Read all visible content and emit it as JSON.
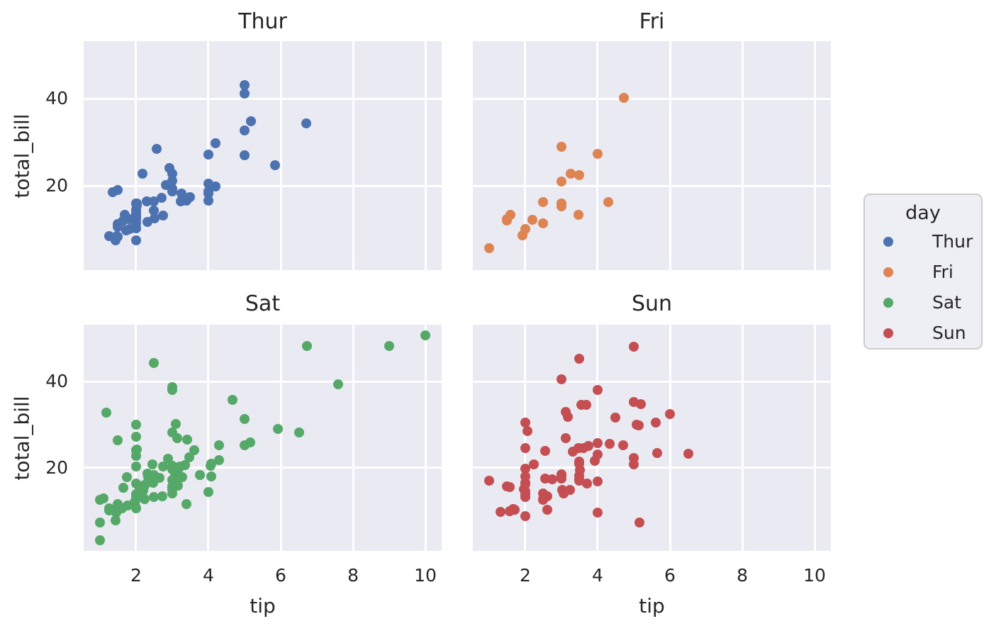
{
  "chart_data": {
    "type": "scatter",
    "facet_by": "day",
    "xlabel": "tip",
    "ylabel": "total_bill",
    "xlim": [
      0.55,
      10.45
    ],
    "ylim": [
      0.68,
      53.2
    ],
    "xticks": [
      2,
      4,
      6,
      8,
      10
    ],
    "yticks": [
      20,
      40
    ],
    "grid": true,
    "panel_background": "#EAEAF2",
    "grid_color": "#FFFFFF",
    "legend": {
      "title": "day",
      "position": "right",
      "entries": [
        {
          "label": "Thur",
          "color": "#4C72B0"
        },
        {
          "label": "Fri",
          "color": "#DD8452"
        },
        {
          "label": "Sat",
          "color": "#55A868"
        },
        {
          "label": "Sun",
          "color": "#C44E52"
        }
      ]
    },
    "facets": [
      {
        "title": "Thur",
        "color": "#4C72B0",
        "points": [
          [
            4.0,
            27.2
          ],
          [
            3.0,
            22.76
          ],
          [
            2.71,
            17.29
          ],
          [
            3.0,
            19.44
          ],
          [
            3.4,
            16.66
          ],
          [
            1.83,
            10.07
          ],
          [
            5.0,
            32.68
          ],
          [
            2.03,
            15.98
          ],
          [
            5.17,
            34.83
          ],
          [
            2.0,
            13.03
          ],
          [
            4.0,
            18.28
          ],
          [
            5.85,
            24.71
          ],
          [
            3.0,
            21.16
          ],
          [
            1.5,
            10.65
          ],
          [
            1.8,
            12.43
          ],
          [
            2.92,
            24.08
          ],
          [
            2.31,
            11.69
          ],
          [
            1.68,
            13.42
          ],
          [
            2.5,
            14.26
          ],
          [
            2.0,
            15.95
          ],
          [
            2.52,
            12.48
          ],
          [
            4.2,
            29.8
          ],
          [
            1.48,
            8.52
          ],
          [
            2.0,
            14.52
          ],
          [
            2.0,
            11.38
          ],
          [
            2.18,
            22.82
          ],
          [
            1.5,
            19.08
          ],
          [
            2.83,
            20.27
          ],
          [
            1.5,
            11.17
          ],
          [
            2.0,
            12.26
          ],
          [
            3.25,
            18.26
          ],
          [
            1.25,
            8.51
          ],
          [
            2.0,
            10.33
          ],
          [
            2.0,
            14.15
          ],
          [
            2.0,
            16.0
          ],
          [
            2.75,
            13.16
          ],
          [
            3.5,
            17.47
          ],
          [
            6.7,
            34.3
          ],
          [
            5.0,
            41.19
          ],
          [
            5.0,
            27.05
          ],
          [
            2.3,
            16.43
          ],
          [
            1.5,
            8.35
          ],
          [
            1.36,
            18.64
          ],
          [
            1.63,
            11.87
          ],
          [
            1.73,
            9.78
          ],
          [
            2.0,
            7.51
          ],
          [
            4.19,
            19.81
          ],
          [
            2.56,
            28.44
          ],
          [
            2.02,
            15.48
          ],
          [
            4.0,
            16.58
          ],
          [
            1.44,
            7.56
          ],
          [
            2.0,
            10.34
          ],
          [
            5.0,
            43.11
          ],
          [
            2.0,
            13.0
          ],
          [
            2.0,
            13.51
          ],
          [
            4.0,
            18.71
          ],
          [
            2.01,
            12.74
          ],
          [
            2.0,
            13.0
          ],
          [
            2.5,
            16.4
          ],
          [
            4.0,
            20.53
          ],
          [
            3.23,
            16.47
          ],
          [
            3.0,
            18.78
          ]
        ]
      },
      {
        "title": "Fri",
        "color": "#DD8452",
        "points": [
          [
            3.0,
            28.97
          ],
          [
            3.5,
            22.49
          ],
          [
            1.0,
            5.75
          ],
          [
            4.3,
            16.32
          ],
          [
            3.25,
            22.75
          ],
          [
            4.73,
            40.17
          ],
          [
            4.0,
            27.28
          ],
          [
            1.5,
            12.03
          ],
          [
            3.0,
            21.01
          ],
          [
            1.5,
            12.46
          ],
          [
            2.5,
            11.35
          ],
          [
            3.0,
            15.38
          ],
          [
            2.2,
            12.16
          ],
          [
            3.48,
            13.42
          ],
          [
            1.92,
            8.58
          ],
          [
            3.0,
            15.98
          ],
          [
            1.58,
            13.42
          ],
          [
            2.5,
            16.27
          ],
          [
            2.0,
            10.09
          ]
        ]
      },
      {
        "title": "Sat",
        "color": "#55A868",
        "points": [
          [
            3.35,
            20.65
          ],
          [
            4.08,
            17.92
          ],
          [
            2.75,
            20.29
          ],
          [
            2.23,
            15.77
          ],
          [
            7.58,
            39.42
          ],
          [
            3.18,
            19.82
          ],
          [
            2.34,
            17.81
          ],
          [
            2.0,
            13.37
          ],
          [
            2.0,
            12.69
          ],
          [
            4.3,
            21.7
          ],
          [
            3.0,
            19.65
          ],
          [
            1.45,
            9.55
          ],
          [
            2.5,
            18.35
          ],
          [
            3.0,
            15.06
          ],
          [
            2.45,
            20.69
          ],
          [
            3.27,
            17.78
          ],
          [
            3.6,
            24.06
          ],
          [
            2.0,
            16.31
          ],
          [
            3.07,
            16.93
          ],
          [
            2.31,
            18.69
          ],
          [
            5.0,
            31.27
          ],
          [
            2.24,
            16.04
          ],
          [
            3.0,
            38.01
          ],
          [
            1.5,
            26.41
          ],
          [
            1.76,
            11.24
          ],
          [
            6.73,
            48.27
          ],
          [
            3.21,
            20.29
          ],
          [
            2.0,
            13.81
          ],
          [
            1.98,
            11.02
          ],
          [
            3.76,
            18.29
          ],
          [
            2.64,
            17.59
          ],
          [
            3.15,
            20.08
          ],
          [
            2.47,
            16.45
          ],
          [
            1.0,
            3.07
          ],
          [
            2.01,
            20.23
          ],
          [
            2.09,
            15.01
          ],
          [
            1.97,
            12.02
          ],
          [
            3.0,
            17.07
          ],
          [
            3.14,
            26.86
          ],
          [
            5.0,
            25.28
          ],
          [
            2.2,
            14.73
          ],
          [
            1.25,
            10.51
          ],
          [
            3.08,
            17.92
          ],
          [
            2.5,
            44.3
          ],
          [
            3.48,
            22.42
          ],
          [
            4.08,
            20.92
          ],
          [
            1.64,
            15.36
          ],
          [
            4.06,
            20.49
          ],
          [
            4.29,
            25.21
          ],
          [
            3.76,
            18.24
          ],
          [
            4.0,
            14.31
          ],
          [
            3.0,
            14.0
          ],
          [
            1.0,
            7.25
          ],
          [
            1.61,
            10.59
          ],
          [
            2.0,
            10.63
          ],
          [
            10.0,
            50.81
          ],
          [
            3.16,
            15.81
          ],
          [
            3.41,
            26.59
          ],
          [
            3.0,
            38.73
          ],
          [
            2.03,
            24.27
          ],
          [
            2.23,
            12.76
          ],
          [
            2.0,
            30.06
          ],
          [
            5.16,
            25.89
          ],
          [
            9.0,
            48.33
          ],
          [
            2.5,
            13.27
          ],
          [
            6.5,
            28.17
          ],
          [
            1.1,
            12.9
          ],
          [
            3.0,
            28.15
          ],
          [
            1.5,
            11.59
          ],
          [
            1.44,
            7.74
          ],
          [
            3.09,
            30.14
          ],
          [
            3.0,
            20.45
          ],
          [
            2.72,
            13.28
          ],
          [
            2.88,
            22.12
          ],
          [
            2.0,
            24.01
          ],
          [
            3.0,
            15.69
          ],
          [
            3.39,
            11.61
          ],
          [
            1.47,
            10.77
          ],
          [
            3.0,
            15.53
          ],
          [
            1.25,
            10.07
          ],
          [
            1.0,
            12.6
          ],
          [
            1.17,
            32.83
          ],
          [
            4.67,
            35.83
          ],
          [
            5.92,
            29.03
          ],
          [
            2.0,
            27.18
          ],
          [
            2.0,
            22.67
          ],
          [
            1.75,
            17.82
          ]
        ]
      },
      {
        "title": "Sun",
        "color": "#C44E52",
        "points": [
          [
            1.01,
            16.99
          ],
          [
            1.66,
            10.34
          ],
          [
            3.5,
            21.01
          ],
          [
            3.31,
            23.68
          ],
          [
            3.61,
            24.59
          ],
          [
            4.71,
            25.29
          ],
          [
            2.0,
            8.77
          ],
          [
            3.12,
            26.88
          ],
          [
            1.96,
            15.04
          ],
          [
            3.23,
            14.78
          ],
          [
            1.71,
            10.27
          ],
          [
            5.0,
            35.26
          ],
          [
            1.57,
            15.42
          ],
          [
            3.0,
            18.43
          ],
          [
            3.02,
            14.83
          ],
          [
            3.92,
            21.58
          ],
          [
            1.67,
            10.33
          ],
          [
            3.71,
            16.29
          ],
          [
            3.5,
            16.97
          ],
          [
            2.54,
            17.46
          ],
          [
            3.06,
            13.94
          ],
          [
            1.32,
            9.68
          ],
          [
            5.6,
            30.4
          ],
          [
            3.0,
            18.29
          ],
          [
            5.0,
            22.23
          ],
          [
            6.0,
            32.4
          ],
          [
            2.05,
            28.55
          ],
          [
            3.0,
            18.04
          ],
          [
            2.5,
            12.54
          ],
          [
            2.6,
            10.29
          ],
          [
            5.2,
            34.81
          ],
          [
            1.56,
            9.94
          ],
          [
            4.34,
            25.56
          ],
          [
            3.51,
            19.49
          ],
          [
            4.0,
            38.07
          ],
          [
            2.55,
            23.95
          ],
          [
            4.0,
            25.71
          ],
          [
            3.5,
            17.31
          ],
          [
            5.07,
            29.93
          ],
          [
            2.5,
            14.07
          ],
          [
            2.0,
            13.13
          ],
          [
            2.74,
            17.26
          ],
          [
            2.0,
            24.55
          ],
          [
            2.0,
            19.77
          ],
          [
            5.14,
            29.85
          ],
          [
            5.0,
            48.17
          ],
          [
            3.75,
            25.0
          ],
          [
            2.61,
            13.39
          ],
          [
            2.0,
            16.49
          ],
          [
            3.5,
            21.5
          ],
          [
            2.5,
            12.66
          ],
          [
            2.0,
            16.21
          ],
          [
            2.0,
            13.81
          ],
          [
            3.0,
            17.51
          ],
          [
            3.48,
            24.52
          ],
          [
            2.24,
            20.76
          ],
          [
            4.5,
            31.71
          ],
          [
            5.15,
            7.25
          ],
          [
            3.18,
            31.85
          ],
          [
            4.0,
            16.82
          ],
          [
            3.11,
            32.9
          ],
          [
            2.0,
            17.89
          ],
          [
            2.0,
            14.48
          ],
          [
            4.0,
            9.6
          ],
          [
            3.55,
            34.63
          ],
          [
            3.68,
            34.65
          ],
          [
            5.65,
            23.33
          ],
          [
            3.5,
            45.35
          ],
          [
            6.5,
            23.17
          ],
          [
            3.0,
            40.55
          ],
          [
            5.0,
            20.69
          ],
          [
            3.5,
            20.9
          ],
          [
            2.0,
            30.46
          ],
          [
            3.5,
            18.15
          ],
          [
            4.0,
            23.1
          ],
          [
            1.5,
            15.69
          ]
        ]
      }
    ]
  }
}
